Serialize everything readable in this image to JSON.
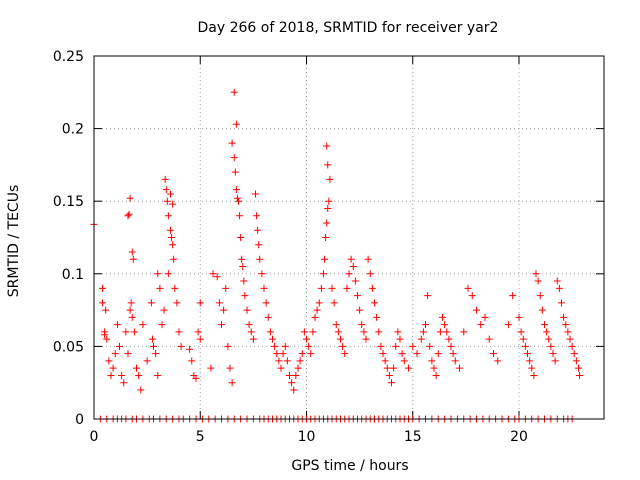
{
  "chart_data": {
    "type": "scatter",
    "title": "Day 266 of 2018, SRMTID for receiver yar2",
    "xlabel": "GPS time / hours",
    "ylabel": "SRMTID / TECUs",
    "xlim": [
      0,
      24
    ],
    "ylim": [
      0,
      0.25
    ],
    "x_ticks": [
      0,
      5,
      10,
      15,
      20
    ],
    "x_tick_labels": [
      "0",
      "5",
      "10",
      "15",
      "20"
    ],
    "y_ticks": [
      0,
      0.05,
      0.1,
      0.15,
      0.2,
      0.25
    ],
    "y_tick_labels": [
      "0",
      "0.05",
      "0.1",
      "0.15",
      "0.2",
      "0.25"
    ],
    "grid": true,
    "marker": "+",
    "series": [
      {
        "name": "SRMTID",
        "color": "#ff0000",
        "points": [
          [
            0.0,
            0.134
          ],
          [
            0.4,
            0.09
          ],
          [
            0.4,
            0.08
          ],
          [
            0.5,
            0.06
          ],
          [
            0.5,
            0.058
          ],
          [
            0.6,
            0.055
          ],
          [
            0.55,
            0.075
          ],
          [
            0.7,
            0.04
          ],
          [
            0.8,
            0.03
          ],
          [
            0.9,
            0.035
          ],
          [
            1.0,
            0.045
          ],
          [
            1.1,
            0.065
          ],
          [
            1.2,
            0.05
          ],
          [
            1.3,
            0.03
          ],
          [
            1.4,
            0.025
          ],
          [
            1.5,
            0.06
          ],
          [
            1.6,
            0.045
          ],
          [
            1.7,
            0.075
          ],
          [
            1.75,
            0.08
          ],
          [
            1.8,
            0.07
          ],
          [
            1.6,
            0.14
          ],
          [
            1.7,
            0.152
          ],
          [
            1.65,
            0.141
          ],
          [
            1.8,
            0.115
          ],
          [
            1.85,
            0.11
          ],
          [
            1.9,
            0.06
          ],
          [
            2.0,
            0.035
          ],
          [
            2.1,
            0.03
          ],
          [
            2.2,
            0.02
          ],
          [
            2.3,
            0.065
          ],
          [
            2.5,
            0.04
          ],
          [
            2.7,
            0.08
          ],
          [
            2.75,
            0.055
          ],
          [
            2.8,
            0.05
          ],
          [
            2.9,
            0.045
          ],
          [
            3.0,
            0.03
          ],
          [
            3.0,
            0.1
          ],
          [
            3.1,
            0.09
          ],
          [
            3.2,
            0.065
          ],
          [
            3.3,
            0.075
          ],
          [
            3.35,
            0.165
          ],
          [
            3.4,
            0.158
          ],
          [
            3.45,
            0.15
          ],
          [
            3.5,
            0.14
          ],
          [
            3.6,
            0.13
          ],
          [
            3.65,
            0.125
          ],
          [
            3.7,
            0.12
          ],
          [
            3.75,
            0.11
          ],
          [
            3.8,
            0.09
          ],
          [
            3.9,
            0.08
          ],
          [
            3.6,
            0.155
          ],
          [
            3.7,
            0.148
          ],
          [
            3.5,
            0.1
          ],
          [
            4.0,
            0.06
          ],
          [
            4.1,
            0.05
          ],
          [
            4.5,
            0.048
          ],
          [
            4.6,
            0.04
          ],
          [
            4.7,
            0.03
          ],
          [
            4.8,
            0.028
          ],
          [
            4.9,
            0.06
          ],
          [
            5.0,
            0.08
          ],
          [
            5.0,
            0.055
          ],
          [
            5.5,
            0.035
          ],
          [
            5.6,
            0.1
          ],
          [
            5.8,
            0.098
          ],
          [
            5.9,
            0.08
          ],
          [
            6.0,
            0.065
          ],
          [
            6.1,
            0.075
          ],
          [
            6.2,
            0.09
          ],
          [
            6.3,
            0.05
          ],
          [
            6.4,
            0.035
          ],
          [
            6.5,
            0.025
          ],
          [
            6.6,
            0.225
          ],
          [
            6.7,
            0.203
          ],
          [
            6.5,
            0.19
          ],
          [
            6.6,
            0.18
          ],
          [
            6.65,
            0.17
          ],
          [
            6.7,
            0.158
          ],
          [
            6.75,
            0.152
          ],
          [
            6.8,
            0.15
          ],
          [
            6.85,
            0.14
          ],
          [
            6.9,
            0.125
          ],
          [
            6.95,
            0.11
          ],
          [
            7.0,
            0.105
          ],
          [
            7.05,
            0.095
          ],
          [
            7.1,
            0.085
          ],
          [
            7.2,
            0.075
          ],
          [
            7.3,
            0.065
          ],
          [
            7.4,
            0.06
          ],
          [
            7.5,
            0.055
          ],
          [
            7.6,
            0.155
          ],
          [
            7.65,
            0.14
          ],
          [
            7.7,
            0.13
          ],
          [
            7.75,
            0.12
          ],
          [
            7.8,
            0.11
          ],
          [
            7.9,
            0.1
          ],
          [
            8.0,
            0.09
          ],
          [
            8.1,
            0.08
          ],
          [
            8.2,
            0.07
          ],
          [
            8.3,
            0.06
          ],
          [
            8.4,
            0.055
          ],
          [
            8.5,
            0.05
          ],
          [
            8.6,
            0.045
          ],
          [
            8.7,
            0.04
          ],
          [
            8.8,
            0.035
          ],
          [
            8.9,
            0.045
          ],
          [
            9.0,
            0.05
          ],
          [
            9.1,
            0.04
          ],
          [
            9.2,
            0.03
          ],
          [
            9.3,
            0.025
          ],
          [
            9.4,
            0.02
          ],
          [
            9.5,
            0.03
          ],
          [
            9.6,
            0.035
          ],
          [
            9.7,
            0.04
          ],
          [
            9.8,
            0.045
          ],
          [
            9.9,
            0.06
          ],
          [
            10.0,
            0.055
          ],
          [
            10.1,
            0.05
          ],
          [
            10.2,
            0.045
          ],
          [
            10.3,
            0.06
          ],
          [
            10.4,
            0.07
          ],
          [
            10.5,
            0.075
          ],
          [
            10.6,
            0.08
          ],
          [
            10.7,
            0.09
          ],
          [
            10.8,
            0.1
          ],
          [
            10.85,
            0.11
          ],
          [
            10.9,
            0.125
          ],
          [
            10.95,
            0.135
          ],
          [
            11.0,
            0.145
          ],
          [
            11.05,
            0.15
          ],
          [
            10.95,
            0.188
          ],
          [
            11.0,
            0.175
          ],
          [
            11.1,
            0.165
          ],
          [
            11.2,
            0.09
          ],
          [
            11.3,
            0.08
          ],
          [
            11.4,
            0.065
          ],
          [
            11.5,
            0.06
          ],
          [
            11.6,
            0.055
          ],
          [
            11.7,
            0.05
          ],
          [
            11.8,
            0.045
          ],
          [
            11.9,
            0.09
          ],
          [
            12.0,
            0.1
          ],
          [
            12.1,
            0.11
          ],
          [
            12.2,
            0.105
          ],
          [
            12.3,
            0.095
          ],
          [
            12.4,
            0.085
          ],
          [
            12.5,
            0.075
          ],
          [
            12.6,
            0.065
          ],
          [
            12.7,
            0.06
          ],
          [
            12.8,
            0.055
          ],
          [
            12.9,
            0.11
          ],
          [
            13.0,
            0.1
          ],
          [
            13.1,
            0.09
          ],
          [
            13.2,
            0.08
          ],
          [
            13.3,
            0.07
          ],
          [
            13.4,
            0.06
          ],
          [
            13.5,
            0.05
          ],
          [
            13.6,
            0.045
          ],
          [
            13.7,
            0.04
          ],
          [
            13.8,
            0.035
          ],
          [
            13.9,
            0.03
          ],
          [
            14.0,
            0.025
          ],
          [
            14.1,
            0.035
          ],
          [
            14.2,
            0.05
          ],
          [
            14.3,
            0.06
          ],
          [
            14.4,
            0.055
          ],
          [
            14.5,
            0.045
          ],
          [
            14.6,
            0.04
          ],
          [
            14.8,
            0.035
          ],
          [
            15.0,
            0.05
          ],
          [
            15.2,
            0.045
          ],
          [
            15.4,
            0.055
          ],
          [
            15.5,
            0.06
          ],
          [
            15.6,
            0.065
          ],
          [
            15.7,
            0.085
          ],
          [
            15.8,
            0.05
          ],
          [
            15.9,
            0.04
          ],
          [
            16.0,
            0.035
          ],
          [
            16.1,
            0.03
          ],
          [
            16.2,
            0.045
          ],
          [
            16.3,
            0.06
          ],
          [
            16.4,
            0.07
          ],
          [
            16.5,
            0.065
          ],
          [
            16.6,
            0.06
          ],
          [
            16.7,
            0.055
          ],
          [
            16.8,
            0.05
          ],
          [
            16.9,
            0.045
          ],
          [
            17.0,
            0.04
          ],
          [
            17.2,
            0.035
          ],
          [
            17.4,
            0.06
          ],
          [
            17.6,
            0.09
          ],
          [
            17.8,
            0.085
          ],
          [
            18.0,
            0.075
          ],
          [
            18.2,
            0.065
          ],
          [
            18.4,
            0.07
          ],
          [
            18.6,
            0.055
          ],
          [
            18.8,
            0.045
          ],
          [
            19.0,
            0.04
          ],
          [
            19.5,
            0.065
          ],
          [
            19.7,
            0.085
          ],
          [
            20.0,
            0.07
          ],
          [
            20.1,
            0.06
          ],
          [
            20.2,
            0.055
          ],
          [
            20.3,
            0.05
          ],
          [
            20.4,
            0.045
          ],
          [
            20.5,
            0.04
          ],
          [
            20.6,
            0.035
          ],
          [
            20.7,
            0.03
          ],
          [
            20.8,
            0.1
          ],
          [
            20.9,
            0.095
          ],
          [
            21.0,
            0.085
          ],
          [
            21.1,
            0.075
          ],
          [
            21.2,
            0.065
          ],
          [
            21.3,
            0.06
          ],
          [
            21.4,
            0.055
          ],
          [
            21.5,
            0.05
          ],
          [
            21.6,
            0.045
          ],
          [
            21.7,
            0.04
          ],
          [
            21.8,
            0.095
          ],
          [
            21.9,
            0.09
          ],
          [
            22.0,
            0.08
          ],
          [
            22.1,
            0.07
          ],
          [
            22.2,
            0.065
          ],
          [
            22.3,
            0.06
          ],
          [
            22.4,
            0.055
          ],
          [
            22.5,
            0.05
          ],
          [
            22.6,
            0.045
          ],
          [
            22.7,
            0.04
          ],
          [
            22.8,
            0.035
          ],
          [
            22.85,
            0.03
          ]
        ],
        "zero_x": [
          0.3,
          0.6,
          0.9,
          1.1,
          1.3,
          1.5,
          1.8,
          2.0,
          2.3,
          2.6,
          2.8,
          3.1,
          3.4,
          3.7,
          4.0,
          4.2,
          4.5,
          4.8,
          5.1,
          5.4,
          5.7,
          6.0,
          6.3,
          6.6,
          6.9,
          7.2,
          7.5,
          7.8,
          8.0,
          8.2,
          8.4,
          8.6,
          8.8,
          9.0,
          9.2,
          9.4,
          9.6,
          9.8,
          10.0,
          10.2,
          10.4,
          10.6,
          10.8,
          11.0,
          11.2,
          11.4,
          11.6,
          11.8,
          12.0,
          12.2,
          12.4,
          12.6,
          12.8,
          13.0,
          13.2,
          13.4,
          13.6,
          13.8,
          14.0,
          14.2,
          14.4,
          14.6,
          14.8,
          15.0,
          15.3,
          15.6,
          15.9,
          16.2,
          16.5,
          16.8,
          17.1,
          17.4,
          17.7,
          18.0,
          18.3,
          18.6,
          18.9,
          19.2,
          19.5,
          19.8,
          20.0,
          20.3,
          20.6,
          20.9,
          21.2,
          21.5,
          21.8,
          22.1,
          22.3,
          22.5
        ]
      }
    ]
  }
}
